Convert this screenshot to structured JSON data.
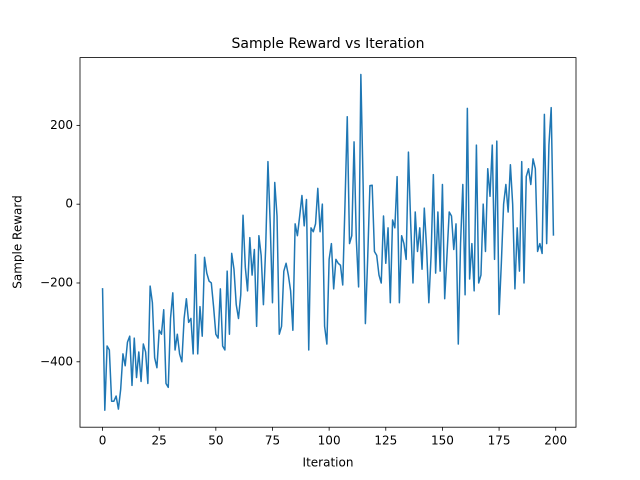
{
  "chart_data": {
    "type": "line",
    "title": "Sample Reward vs Iteration",
    "xlabel": "Iteration",
    "ylabel": "Sample Reward",
    "color": "#1f77b4",
    "xlim": [
      -9.95,
      208.95
    ],
    "ylim": [
      -566,
      372
    ],
    "xticks": [
      0,
      25,
      50,
      75,
      100,
      125,
      150,
      175,
      200
    ],
    "yticks": [
      {
        "value": -400,
        "label": "−400"
      },
      {
        "value": -200,
        "label": "−200"
      },
      0,
      200
    ],
    "x": [
      0,
      1,
      2,
      3,
      4,
      5,
      6,
      7,
      8,
      9,
      10,
      11,
      12,
      13,
      14,
      15,
      16,
      17,
      18,
      19,
      20,
      21,
      22,
      23,
      24,
      25,
      26,
      27,
      28,
      29,
      30,
      31,
      32,
      33,
      34,
      35,
      36,
      37,
      38,
      39,
      40,
      41,
      42,
      43,
      44,
      45,
      46,
      47,
      48,
      49,
      50,
      51,
      52,
      53,
      54,
      55,
      56,
      57,
      58,
      59,
      60,
      61,
      62,
      63,
      64,
      65,
      66,
      67,
      68,
      69,
      70,
      71,
      72,
      73,
      74,
      75,
      76,
      77,
      78,
      79,
      80,
      81,
      82,
      83,
      84,
      85,
      86,
      87,
      88,
      89,
      90,
      91,
      92,
      93,
      94,
      95,
      96,
      97,
      98,
      99,
      100,
      101,
      102,
      103,
      104,
      105,
      106,
      107,
      108,
      109,
      110,
      111,
      112,
      113,
      114,
      115,
      116,
      117,
      118,
      119,
      120,
      121,
      122,
      123,
      124,
      125,
      126,
      127,
      128,
      129,
      130,
      131,
      132,
      133,
      134,
      135,
      136,
      137,
      138,
      139,
      140,
      141,
      142,
      143,
      144,
      145,
      146,
      147,
      148,
      149,
      150,
      151,
      152,
      153,
      154,
      155,
      156,
      157,
      158,
      159,
      160,
      161,
      162,
      163,
      164,
      165,
      166,
      167,
      168,
      169,
      170,
      171,
      172,
      173,
      174,
      175,
      176,
      177,
      178,
      179,
      180,
      181,
      182,
      183,
      184,
      185,
      186,
      187,
      188,
      189,
      190,
      191,
      192,
      193,
      194,
      195,
      196,
      197,
      198,
      199
    ],
    "values": [
      -213,
      -523,
      -360,
      -370,
      -500,
      -500,
      -487,
      -520,
      -470,
      -380,
      -410,
      -350,
      -335,
      -460,
      -340,
      -440,
      -375,
      -450,
      -355,
      -375,
      -455,
      -208,
      -250,
      -390,
      -415,
      -320,
      -330,
      -268,
      -455,
      -465,
      -290,
      -225,
      -370,
      -330,
      -380,
      -400,
      -290,
      -240,
      -300,
      -290,
      -380,
      -128,
      -380,
      -260,
      -335,
      -135,
      -175,
      -195,
      -200,
      -260,
      -330,
      -340,
      -215,
      -360,
      -370,
      -170,
      -330,
      -125,
      -165,
      -255,
      -290,
      -230,
      -28,
      -160,
      -220,
      -85,
      -180,
      -115,
      -310,
      -80,
      -130,
      -255,
      -110,
      108,
      -50,
      -250,
      55,
      -30,
      -330,
      -310,
      -170,
      -150,
      -180,
      -220,
      -320,
      -50,
      -80,
      -30,
      22,
      -55,
      12,
      -370,
      -60,
      -70,
      -50,
      40,
      -70,
      0,
      -310,
      -355,
      -140,
      -100,
      -215,
      -140,
      -150,
      -155,
      -205,
      0,
      222,
      -100,
      -80,
      158,
      -90,
      -210,
      329,
      50,
      -303,
      -140,
      47,
      48,
      -120,
      -130,
      -180,
      -200,
      -30,
      -150,
      -60,
      -250,
      -40,
      -60,
      70,
      -250,
      -80,
      -100,
      -140,
      132,
      -50,
      -200,
      -20,
      -120,
      -60,
      -165,
      -10,
      -110,
      -250,
      -130,
      75,
      -175,
      -20,
      -170,
      50,
      -240,
      -130,
      -20,
      -30,
      -115,
      -50,
      -355,
      -100,
      50,
      -230,
      243,
      -190,
      -100,
      -220,
      150,
      -200,
      -180,
      0,
      -120,
      90,
      20,
      150,
      -140,
      160,
      -280,
      -150,
      0,
      50,
      -20,
      100,
      0,
      -215,
      -60,
      -170,
      108,
      -200,
      70,
      90,
      50,
      115,
      90,
      -120,
      -100,
      -125,
      228,
      -100,
      150,
      245,
      -80
    ]
  }
}
